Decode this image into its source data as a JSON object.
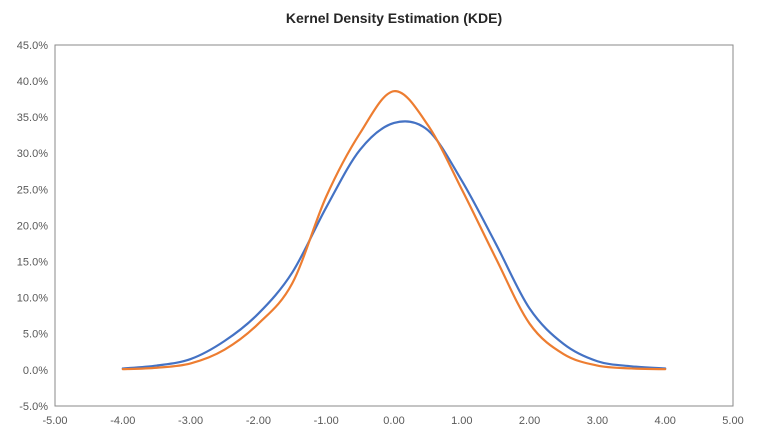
{
  "window": {
    "background": "#ffffff"
  },
  "chart_data": {
    "type": "line",
    "title": "Kernel Density Estimation (KDE)",
    "xlabel": "",
    "ylabel": "",
    "grid": false,
    "legend": "none",
    "xlim": [
      -5,
      5
    ],
    "ylim_percent": [
      -5,
      45
    ],
    "x_ticks": [
      "-5.00",
      "-4.00",
      "-3.00",
      "-2.00",
      "-1.00",
      "0.00",
      "1.00",
      "2.00",
      "3.00",
      "4.00",
      "5.00"
    ],
    "x_tick_values": [
      -5,
      -4,
      -3,
      -2,
      -1,
      0,
      1,
      2,
      3,
      4,
      5
    ],
    "y_ticks": [
      "45.0%",
      "40.0%",
      "35.0%",
      "30.0%",
      "25.0%",
      "20.0%",
      "15.0%",
      "10.0%",
      "5.0%",
      "0.0%",
      "-5.0%"
    ],
    "y_tick_values": [
      45,
      40,
      35,
      30,
      25,
      20,
      15,
      10,
      5,
      0,
      -5
    ],
    "x": [
      -4.0,
      -3.5,
      -3.0,
      -2.5,
      -2.0,
      -1.5,
      -1.0,
      -0.5,
      0.0,
      0.5,
      1.0,
      1.5,
      2.0,
      2.5,
      3.0,
      3.5,
      4.0
    ],
    "series": [
      {
        "name": "blue-series",
        "color": "#4472C4",
        "values_percent": [
          0.2,
          0.6,
          1.5,
          4.0,
          7.8,
          13.5,
          22.5,
          30.5,
          34.2,
          33.2,
          26.2,
          17.5,
          8.5,
          3.6,
          1.2,
          0.5,
          0.2
        ]
      },
      {
        "name": "orange-series",
        "color": "#ED7D31",
        "values_percent": [
          0.1,
          0.3,
          0.9,
          2.8,
          6.4,
          12.0,
          24.0,
          32.8,
          38.6,
          33.9,
          25.0,
          15.5,
          6.4,
          2.2,
          0.6,
          0.2,
          0.1
        ]
      }
    ],
    "plot_border_color": "#8a8a8a",
    "axis_color": "#8a8a8a",
    "tick_text_color": "#595959",
    "title_color": "#262626"
  }
}
